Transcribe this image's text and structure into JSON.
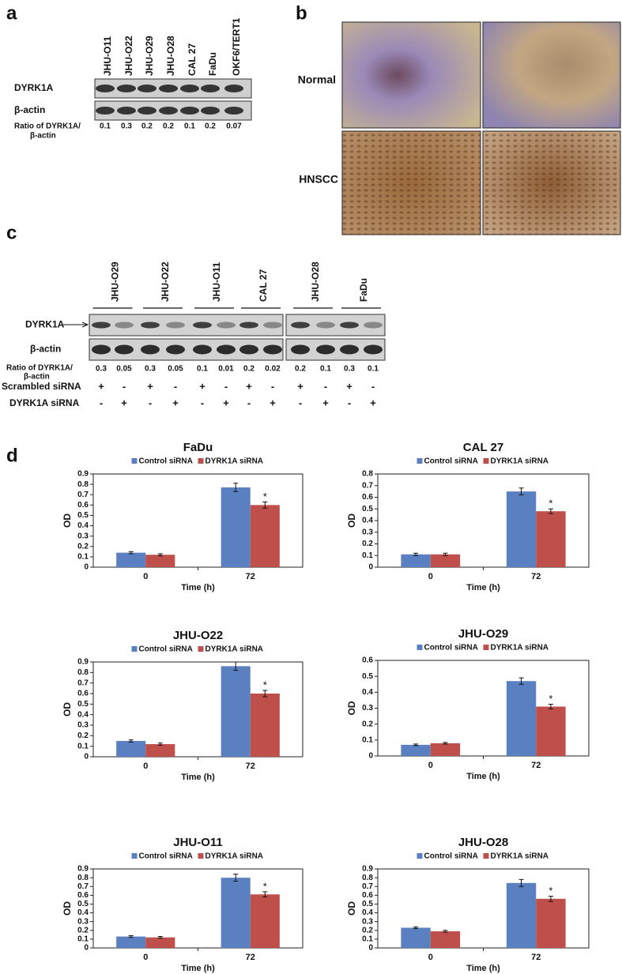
{
  "panel_a": {
    "label": "a",
    "lanes": [
      "JHU-O11",
      "JHU-O22",
      "JHU-O29",
      "JHU-O28",
      "CAL 27",
      "FaDu",
      "OKF6/TERT1"
    ],
    "rows": [
      "DYRK1A",
      "β-actin"
    ],
    "ratio_label": [
      "Ratio of DYRK1A/",
      "β-actin"
    ],
    "ratios": [
      0.1,
      0.3,
      0.2,
      0.2,
      0.1,
      0.2,
      0.07
    ]
  },
  "panel_b": {
    "label": "b",
    "rows": [
      "Normal",
      "HNSCC"
    ]
  },
  "panel_c": {
    "label": "c",
    "lanes": [
      "JHU-O29",
      "JHU-O22",
      "JHU-O11",
      "CAL 27",
      "JHU-O28",
      "FaDu"
    ],
    "rows": [
      "DYRK1A",
      "β-actin"
    ],
    "ratio_label": [
      "Ratio of DYRK1A/",
      "β-actin"
    ],
    "ratios": [
      0.3,
      0.05,
      0.3,
      0.05,
      0.1,
      0.01,
      0.2,
      0.02,
      0.2,
      0.1,
      0.3,
      0.1
    ],
    "treatments": [
      {
        "name": "Scrambled siRNA",
        "signs": [
          "+",
          "-",
          "+",
          "-",
          "+",
          "-",
          "+",
          "-",
          "+",
          "-",
          "+",
          "-"
        ]
      },
      {
        "name": "DYRK1A siRNA",
        "signs": [
          "-",
          "+",
          "-",
          "+",
          "-",
          "+",
          "-",
          "+",
          "-",
          "+",
          "-",
          "+"
        ]
      }
    ]
  },
  "panel_d": {
    "label": "d"
  },
  "chart_data": [
    {
      "type": "bar",
      "title": "FaDu",
      "x_label": "Time (h)",
      "y_label": "OD",
      "categories": [
        "0",
        "72"
      ],
      "annotation": "*",
      "ylim": [
        0,
        0.9
      ],
      "yticks": [
        0,
        0.1,
        0.2,
        0.3,
        0.4,
        0.5,
        0.6,
        0.7,
        0.8,
        0.9
      ],
      "series": [
        {
          "name": "Control siRNA",
          "color": "#5b80c2",
          "values": [
            0.14,
            0.77
          ],
          "errors": [
            0.01,
            0.04
          ]
        },
        {
          "name": "DYRK1A siRNA",
          "color": "#bf4f4b",
          "values": [
            0.12,
            0.6
          ],
          "errors": [
            0.01,
            0.03
          ]
        }
      ]
    },
    {
      "type": "bar",
      "title": "CAL 27",
      "x_label": "Time (h)",
      "y_label": "OD",
      "categories": [
        "0",
        "72"
      ],
      "annotation": "*",
      "ylim": [
        0,
        0.8
      ],
      "yticks": [
        0,
        0.1,
        0.2,
        0.3,
        0.4,
        0.5,
        0.6,
        0.7,
        0.8
      ],
      "series": [
        {
          "name": "Control siRNA",
          "color": "#5b80c2",
          "values": [
            0.11,
            0.65
          ],
          "errors": [
            0.01,
            0.03
          ]
        },
        {
          "name": "DYRK1A siRNA",
          "color": "#bf4f4b",
          "values": [
            0.11,
            0.48
          ],
          "errors": [
            0.01,
            0.02
          ]
        }
      ]
    },
    {
      "type": "bar",
      "title": "JHU-O22",
      "x_label": "Time (h)",
      "y_label": "OD",
      "categories": [
        "0",
        "72"
      ],
      "annotation": "*",
      "ylim": [
        0,
        0.9
      ],
      "yticks": [
        0,
        0.1,
        0.2,
        0.3,
        0.4,
        0.5,
        0.6,
        0.7,
        0.8,
        0.9
      ],
      "series": [
        {
          "name": "Control siRNA",
          "color": "#5b80c2",
          "values": [
            0.15,
            0.86
          ],
          "errors": [
            0.01,
            0.04
          ]
        },
        {
          "name": "DYRK1A siRNA",
          "color": "#bf4f4b",
          "values": [
            0.12,
            0.6
          ],
          "errors": [
            0.01,
            0.03
          ]
        }
      ]
    },
    {
      "type": "bar",
      "title": "JHU-O29",
      "x_label": "Time (h)",
      "y_label": "OD",
      "categories": [
        "0",
        "72"
      ],
      "annotation": "*",
      "ylim": [
        0,
        0.6
      ],
      "yticks": [
        0,
        0.1,
        0.2,
        0.3,
        0.4,
        0.5,
        0.6
      ],
      "series": [
        {
          "name": "Control siRNA",
          "color": "#5b80c2",
          "values": [
            0.07,
            0.47
          ],
          "errors": [
            0.005,
            0.02
          ]
        },
        {
          "name": "DYRK1A siRNA",
          "color": "#bf4f4b",
          "values": [
            0.08,
            0.31
          ],
          "errors": [
            0.005,
            0.015
          ]
        }
      ]
    },
    {
      "type": "bar",
      "title": "JHU-O11",
      "x_label": "Time (h)",
      "y_label": "OD",
      "categories": [
        "0",
        "72"
      ],
      "annotation": "*",
      "ylim": [
        0,
        0.9
      ],
      "yticks": [
        0,
        0.1,
        0.2,
        0.3,
        0.4,
        0.5,
        0.6,
        0.7,
        0.8,
        0.9
      ],
      "series": [
        {
          "name": "Control siRNA",
          "color": "#5b80c2",
          "values": [
            0.13,
            0.8
          ],
          "errors": [
            0.01,
            0.04
          ]
        },
        {
          "name": "DYRK1A siRNA",
          "color": "#bf4f4b",
          "values": [
            0.12,
            0.61
          ],
          "errors": [
            0.01,
            0.03
          ]
        }
      ]
    },
    {
      "type": "bar",
      "title": "JHU-O28",
      "x_label": "Time (h)",
      "y_label": "OD",
      "categories": [
        "0",
        "72"
      ],
      "annotation": "*",
      "ylim": [
        0,
        0.9
      ],
      "yticks": [
        0,
        0.1,
        0.2,
        0.3,
        0.4,
        0.5,
        0.6,
        0.7,
        0.8,
        0.9
      ],
      "series": [
        {
          "name": "Control siRNA",
          "color": "#5b80c2",
          "values": [
            0.23,
            0.74
          ],
          "errors": [
            0.01,
            0.04
          ]
        },
        {
          "name": "DYRK1A siRNA",
          "color": "#bf4f4b",
          "values": [
            0.19,
            0.56
          ],
          "errors": [
            0.01,
            0.03
          ]
        }
      ]
    }
  ]
}
